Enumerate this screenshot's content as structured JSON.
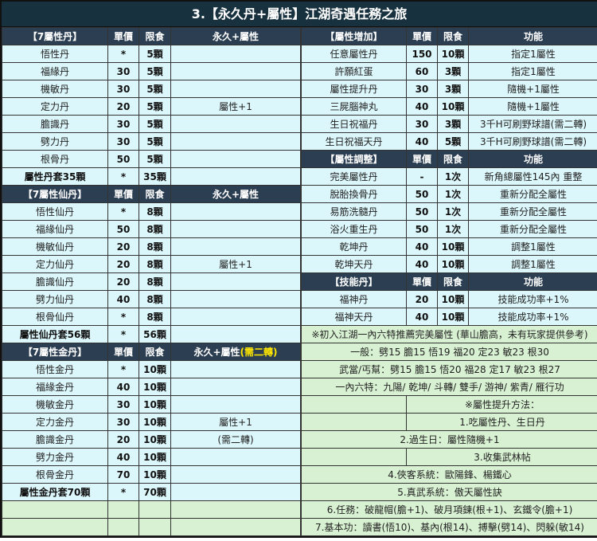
{
  "title": "3.【永久丹+屬性】江湖奇遇任務之旅",
  "colors": {
    "title_bg": "#17313f",
    "header_bg": "#2b3e52",
    "row_bg": "#dcf7fb",
    "note_bg": "#d8f1d2",
    "highlight": "#ffe600"
  },
  "left": {
    "sections": [
      {
        "header": [
          "【7屬性丹】",
          "單價",
          "限食",
          "永久+屬性"
        ],
        "rows": [
          [
            "悟性丹",
            "*",
            "5顆",
            ""
          ],
          [
            "福緣丹",
            "30",
            "5顆",
            ""
          ],
          [
            "機敏丹",
            "30",
            "5顆",
            ""
          ],
          [
            "定力丹",
            "20",
            "5顆",
            "屬性+1"
          ],
          [
            "膽識丹",
            "30",
            "5顆",
            ""
          ],
          [
            "劈力丹",
            "30",
            "5顆",
            ""
          ],
          [
            "根骨丹",
            "50",
            "5顆",
            ""
          ],
          [
            "屬性丹套35顆",
            "*",
            "35顆",
            ""
          ]
        ]
      },
      {
        "header": [
          "【7屬性仙丹】",
          "單價",
          "限食",
          "永久+屬性"
        ],
        "rows": [
          [
            "悟性仙丹",
            "*",
            "8顆",
            ""
          ],
          [
            "福緣仙丹",
            "50",
            "8顆",
            ""
          ],
          [
            "機敏仙丹",
            "20",
            "8顆",
            ""
          ],
          [
            "定力仙丹",
            "20",
            "8顆",
            "屬性+1"
          ],
          [
            "膽識仙丹",
            "20",
            "8顆",
            ""
          ],
          [
            "劈力仙丹",
            "40",
            "8顆",
            ""
          ],
          [
            "根骨仙丹",
            "*",
            "8顆",
            ""
          ],
          [
            "屬性仙丹套56顆",
            "*",
            "56顆",
            ""
          ]
        ]
      },
      {
        "header": [
          "【7屬性金丹】",
          "單價",
          "限食",
          "永久+屬性"
        ],
        "header_note": "(需二轉)",
        "rows": [
          [
            "悟性金丹",
            "*",
            "10顆",
            ""
          ],
          [
            "福緣金丹",
            "40",
            "10顆",
            ""
          ],
          [
            "機敏金丹",
            "30",
            "10顆",
            ""
          ],
          [
            "定力金丹",
            "30",
            "10顆",
            "屬性+1"
          ],
          [
            "膽識金丹",
            "20",
            "10顆",
            "(需二轉)"
          ],
          [
            "劈力金丹",
            "40",
            "10顆",
            ""
          ],
          [
            "根骨金丹",
            "70",
            "10顆",
            ""
          ],
          [
            "屬性金丹套70顆",
            "*",
            "70顆",
            ""
          ]
        ]
      }
    ]
  },
  "right": {
    "sections": [
      {
        "header": [
          "【屬性增加】",
          "單價",
          "限食",
          "功能"
        ],
        "rows": [
          [
            "任意屬性丹",
            "150",
            "10顆",
            "指定1屬性"
          ],
          [
            "許願紅蛋",
            "60",
            "3顆",
            "指定1屬性"
          ],
          [
            "屬性提升丹",
            "30",
            "3顆",
            "隨機+1屬性"
          ],
          [
            "三屍腦神丸",
            "40",
            "10顆",
            "隨機+1屬性"
          ],
          [
            "生日祝福丹",
            "30",
            "3顆",
            "3千H可刷野球譜(需二轉)"
          ],
          [
            "生日祝福天丹",
            "40",
            "5顆",
            "3千H可刷野球譜(需二轉)"
          ]
        ]
      },
      {
        "header": [
          "【屬性調整】",
          "單價",
          "限食",
          "功能"
        ],
        "rows": [
          [
            "完美屬性丹",
            "-",
            "1次",
            "新角總屬性145內 重整"
          ],
          [
            "脫胎換骨丹",
            "50",
            "1次",
            "重新分配全屬性"
          ],
          [
            "易筋洗髓丹",
            "50",
            "1次",
            "重新分配全屬性"
          ],
          [
            "浴火重生丹",
            "50",
            "1次",
            "重新分配全屬性"
          ],
          [
            "乾坤丹",
            "40",
            "10顆",
            "調整1屬性"
          ],
          [
            "乾坤天丹",
            "40",
            "10顆",
            "調整1屬性"
          ]
        ]
      },
      {
        "header": [
          "【技能丹】",
          "單價",
          "限食",
          "功能"
        ],
        "rows": [
          [
            "福神丹",
            "20",
            "10顆",
            "技能成功率+1%"
          ],
          [
            "福神天丹",
            "40",
            "10顆",
            "技能成功率+1%"
          ]
        ]
      }
    ],
    "notes": [
      {
        "text": "※初入江湖一內六特推薦完美屬性 (華山膽高，未有玩家提供參考)",
        "split": false
      },
      {
        "text": "一般：劈15 膽15 悟19 福20 定23 敏23 根30",
        "split": false
      },
      {
        "text": "武當/丐幫：劈15 膽15 悟20 福28 定17 敏23 根27",
        "split": false
      },
      {
        "text": "一內六特：九陽/ 乾坤/ 斗轉/ 雙手/ 游神/ 紫青/ 雁行功",
        "split": false
      },
      {
        "text": "※屬性提升方法：",
        "split": true
      },
      {
        "text": "1.吃屬性丹、生日丹",
        "split": true
      },
      {
        "text": "2.過生日：屬性隨機+1",
        "split": false
      },
      {
        "text": "3.收集武林帖",
        "split": true
      },
      {
        "text": "4.俠客系統：歐陽鋒、楊鐵心",
        "split": false
      },
      {
        "text": "5.真武系統：傲天屬性訣",
        "split": false
      },
      {
        "text": "6.任務：破龍帽(膽+1)、破月項鍊(根+1)、玄鐵令(膽+1)",
        "split": false
      },
      {
        "text": "7.基本功：讀書(悟10)、基內(根14)、搏擊(劈14)、閃躲(敏14)",
        "split": false
      }
    ]
  }
}
